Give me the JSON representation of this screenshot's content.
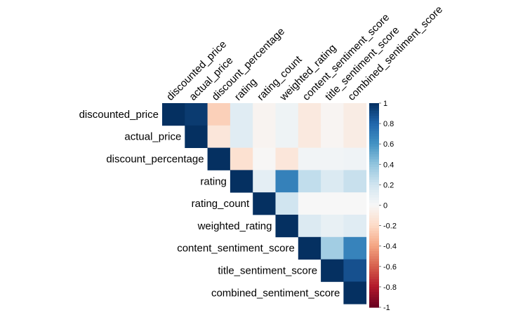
{
  "chart_data": {
    "type": "heatmap",
    "title": "",
    "variables": [
      "discounted_price",
      "actual_price",
      "discount_percentage",
      "rating",
      "rating_count",
      "weighted_rating",
      "content_sentiment_score",
      "title_sentiment_score",
      "combined_sentiment_score"
    ],
    "matrix": [
      [
        1.0,
        0.96,
        -0.24,
        0.12,
        -0.03,
        0.05,
        -0.1,
        -0.02,
        -0.08
      ],
      [
        null,
        1.0,
        -0.12,
        0.12,
        -0.03,
        0.05,
        -0.1,
        -0.02,
        -0.08
      ],
      [
        null,
        null,
        1.0,
        -0.16,
        -0.01,
        -0.12,
        0.03,
        0.03,
        0.04
      ],
      [
        null,
        null,
        null,
        1.0,
        0.1,
        0.68,
        0.25,
        0.15,
        0.23
      ],
      [
        null,
        null,
        null,
        null,
        1.0,
        0.2,
        0.0,
        0.0,
        0.0
      ],
      [
        null,
        null,
        null,
        null,
        null,
        1.0,
        0.14,
        0.08,
        0.12
      ],
      [
        null,
        null,
        null,
        null,
        null,
        null,
        1.0,
        0.35,
        0.67
      ],
      [
        null,
        null,
        null,
        null,
        null,
        null,
        null,
        1.0,
        0.88
      ],
      [
        null,
        null,
        null,
        null,
        null,
        null,
        null,
        null,
        1.0
      ]
    ],
    "color_scale": {
      "min": -1,
      "max": 1,
      "ticks": [
        "1",
        "0.8",
        "0.6",
        "0.4",
        "0.2",
        "0",
        "-0.2",
        "-0.4",
        "-0.6",
        "-0.8",
        "-1"
      ],
      "low_color": "#67001f",
      "mid_color": "#f7f7f7",
      "high_color": "#053061"
    },
    "layout": "upper-triangle",
    "legend_position": "right"
  }
}
